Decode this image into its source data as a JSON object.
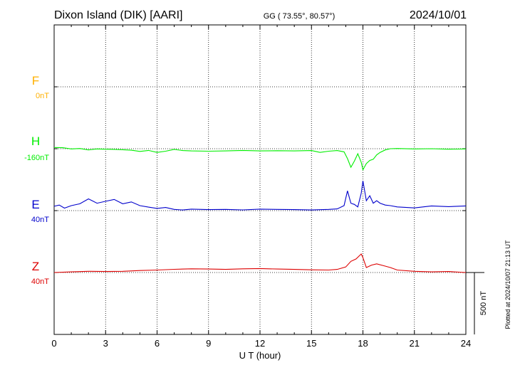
{
  "header": {
    "station": "Dixon Island (DIK)  [AARI]",
    "coords": "GG ( 73.55°,  80.57°)",
    "date": "2024/10/01"
  },
  "side_note": "Plotted at 2024/10/07 21:13 UT",
  "scale_label": "500 nT",
  "colors": {
    "F": "#ffb000",
    "H": "#00ee00",
    "E": "#0000cc",
    "Z": "#dd0000",
    "frame": "#000000"
  },
  "chart_data": {
    "type": "line",
    "xlabel": "U T (hour)",
    "xlim": [
      0,
      24
    ],
    "xticks": [
      0,
      3,
      6,
      9,
      12,
      15,
      18,
      21,
      24
    ],
    "ylabel": "",
    "scale_nT": 500,
    "series": [
      {
        "name": "F",
        "offset_label": "0nT",
        "baseline_nT": 1000,
        "x": [],
        "values": []
      },
      {
        "name": "H",
        "offset_label": "-160nT",
        "baseline_nT": 500,
        "x": [
          0,
          0.5,
          1,
          1.5,
          2,
          2.5,
          3,
          3.5,
          4,
          4.5,
          5,
          5.5,
          6,
          6.5,
          7,
          7.5,
          8,
          9,
          10,
          11,
          12,
          13,
          14,
          15,
          15.5,
          16,
          16.5,
          16.9,
          17.1,
          17.3,
          17.5,
          17.7,
          17.9,
          18.0,
          18.2,
          18.4,
          18.6,
          18.8,
          19.0,
          19.3,
          19.6,
          20,
          21,
          22,
          23,
          24
        ],
        "values": [
          510,
          508,
          498,
          502,
          490,
          498,
          496,
          495,
          492,
          488,
          478,
          486,
          470,
          480,
          495,
          485,
          482,
          480,
          482,
          486,
          482,
          484,
          482,
          485,
          470,
          480,
          485,
          475,
          420,
          350,
          400,
          460,
          390,
          330,
          380,
          405,
          415,
          450,
          470,
          490,
          500,
          502,
          498,
          500,
          496,
          498
        ]
      },
      {
        "name": "E",
        "offset_label": "40nT",
        "baseline_nT": 0,
        "x": [
          0,
          0.3,
          0.6,
          1,
          1.5,
          2,
          2.5,
          3,
          3.5,
          4,
          4.5,
          5,
          5.5,
          6,
          6.5,
          7,
          7.5,
          8,
          9,
          10,
          11,
          12,
          13,
          14,
          15,
          16,
          16.5,
          16.9,
          17.1,
          17.3,
          17.5,
          17.7,
          17.9,
          18.0,
          18.2,
          18.4,
          18.6,
          18.8,
          19.0,
          19.3,
          19.6,
          20,
          21,
          22,
          23,
          24
        ],
        "values": [
          35,
          45,
          20,
          40,
          55,
          95,
          60,
          75,
          90,
          55,
          70,
          40,
          28,
          18,
          25,
          10,
          5,
          12,
          8,
          10,
          6,
          12,
          10,
          8,
          5,
          10,
          14,
          40,
          160,
          60,
          50,
          30,
          140,
          240,
          80,
          120,
          60,
          80,
          60,
          45,
          40,
          30,
          22,
          38,
          32,
          38
        ]
      },
      {
        "name": "Z",
        "offset_label": "40nT",
        "baseline_nT": -500,
        "x": [
          0,
          1,
          2,
          3,
          4,
          5,
          6,
          7,
          8,
          9,
          10,
          11,
          12,
          13,
          14,
          15,
          16,
          16.5,
          17,
          17.3,
          17.6,
          17.9,
          18.0,
          18.2,
          18.5,
          18.8,
          19.2,
          19.6,
          20,
          21,
          22,
          23,
          24
        ],
        "values": [
          0,
          5,
          10,
          8,
          10,
          16,
          20,
          26,
          30,
          28,
          25,
          30,
          32,
          28,
          25,
          22,
          20,
          25,
          45,
          90,
          110,
          150,
          120,
          40,
          60,
          70,
          55,
          40,
          20,
          10,
          5,
          8,
          0
        ]
      }
    ]
  }
}
